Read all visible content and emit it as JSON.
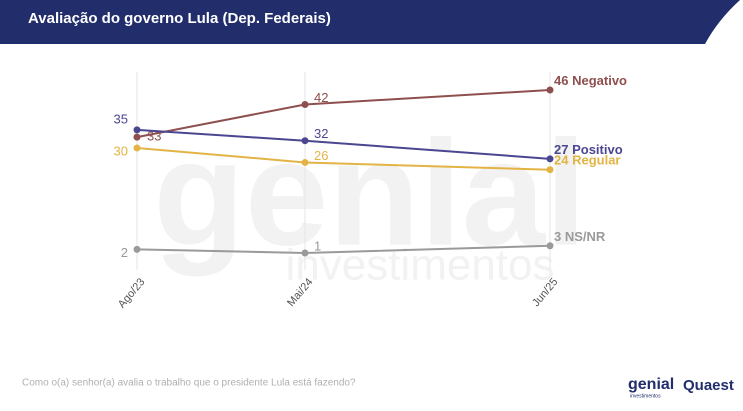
{
  "chart_data": {
    "type": "line",
    "title": "Avaliação do governo Lula (Dep. Federais)",
    "categories": [
      "Ago/23",
      "Mai/24",
      "Jun/25"
    ],
    "series": [
      {
        "name": "Negativo",
        "color": "#8e4f4f",
        "values": [
          33,
          42,
          46
        ]
      },
      {
        "name": "Positivo",
        "color": "#4a4690",
        "values": [
          35,
          32,
          27
        ]
      },
      {
        "name": "Regular",
        "color": "#e3b445",
        "values": [
          30,
          26,
          24
        ]
      },
      {
        "name": "NS/NR",
        "color": "#9a9a9a",
        "values": [
          2,
          1,
          3
        ]
      }
    ],
    "footnote": "Como o(a) senhor(a) avalia o trabalho que o presidente Lula está fazendo?",
    "watermark": [
      "genial",
      "investimentos"
    ],
    "logos": [
      "genial",
      "investimentos",
      "Quaest"
    ]
  }
}
